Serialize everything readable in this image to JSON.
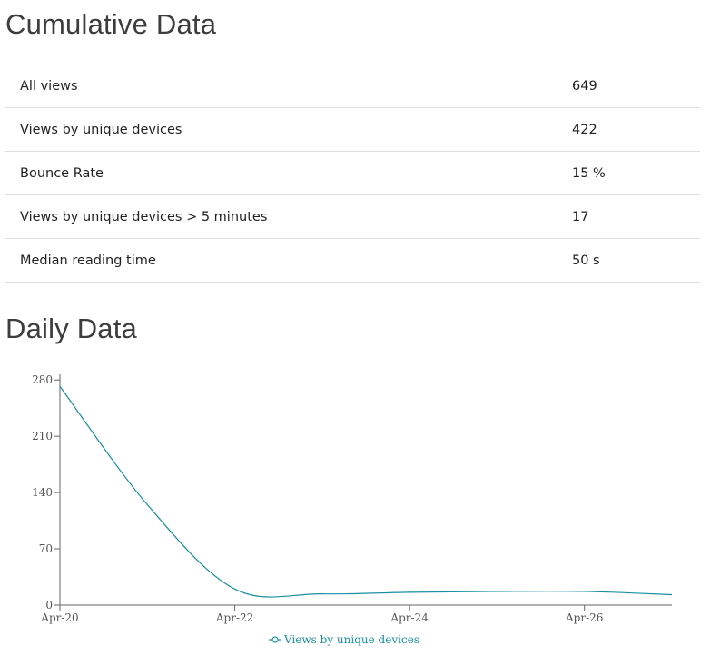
{
  "cumulative": {
    "title": "Cumulative Data",
    "rows": [
      {
        "label": "All views",
        "value": "649"
      },
      {
        "label": "Views by unique devices",
        "value": "422"
      },
      {
        "label": "Bounce Rate",
        "value": "15 %"
      },
      {
        "label": "Views by unique devices > 5 minutes",
        "value": "17"
      },
      {
        "label": "Median reading time",
        "value": "50 s"
      }
    ]
  },
  "daily": {
    "title": "Daily Data"
  },
  "chart_data": {
    "type": "line",
    "title": "",
    "xlabel": "",
    "ylabel": "",
    "x": [
      "Apr-20",
      "Apr-21",
      "Apr-22",
      "Apr-23",
      "Apr-24",
      "Apr-25",
      "Apr-26",
      "Apr-27"
    ],
    "series": [
      {
        "name": "Views by unique devices",
        "color": "#1a8fa0",
        "values": [
          272,
          125,
          20,
          14,
          16,
          17,
          17,
          13
        ]
      }
    ],
    "ylim": [
      0,
      287
    ],
    "yticks": [
      0,
      70,
      140,
      210,
      280
    ],
    "xticks": [
      "Apr-20",
      "Apr-22",
      "Apr-24",
      "Apr-26"
    ],
    "grid": false,
    "legend": "bottom-center"
  }
}
